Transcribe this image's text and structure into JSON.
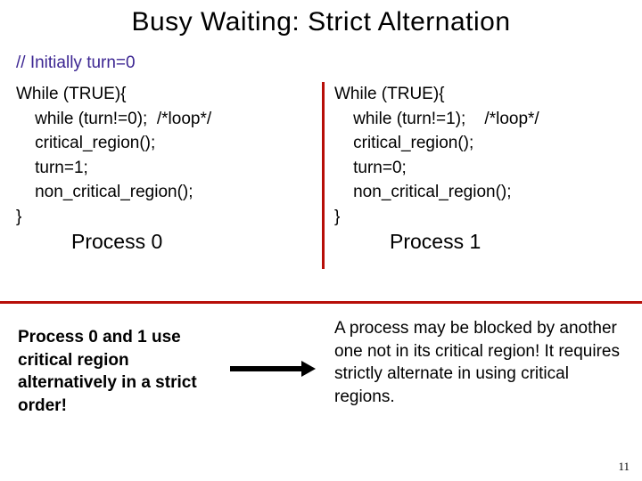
{
  "title": "Busy Waiting: Strict Alternation",
  "init": "// Initially turn=0",
  "left": {
    "l1": "While (TRUE){",
    "l2": "    while (turn!=0);  /*loop*/",
    "l3": "    critical_region();",
    "l4": "    turn=1;",
    "l5": "    non_critical_region();",
    "l6": "}",
    "label": "Process 0"
  },
  "right": {
    "l1": "While (TRUE){",
    "l2": "    while (turn!=1);    /*loop*/",
    "l3": "    critical_region();",
    "l4": "    turn=0;",
    "l5": "    non_critical_region();",
    "l6": "}",
    "label": "Process 1"
  },
  "note_left": "Process 0 and 1 use critical region alternatively in a strict order!",
  "note_right": "A process may be blocked by another one not in its critical region! It requires strictly alternate in using critical regions.",
  "page": "11",
  "colors": {
    "accent": "#b70e08",
    "comment": "#3c2692"
  }
}
